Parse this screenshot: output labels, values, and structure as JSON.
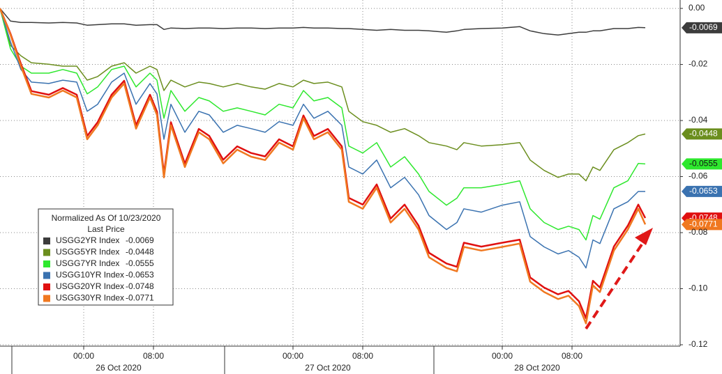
{
  "chart_data": {
    "type": "line",
    "legend_title": "Normalized As Of 10/23/2020",
    "legend_subtitle": "Last Price",
    "days": [
      "26 Oct 2020",
      "27 Oct 2020",
      "28 Oct 2020"
    ],
    "xlim": [
      -9.6,
      68.4
    ],
    "xticks": [
      {
        "value": 0,
        "label": "00:00"
      },
      {
        "value": 8,
        "label": "08:00"
      },
      {
        "value": 24,
        "label": "00:00"
      },
      {
        "value": 32,
        "label": "08:00"
      },
      {
        "value": 48,
        "label": "00:00"
      },
      {
        "value": 56,
        "label": "08:00"
      }
    ],
    "ylim": [
      -0.1205,
      0.003
    ],
    "yticks": [
      {
        "value": 0,
        "label": "0.00"
      },
      {
        "value": -0.02,
        "label": "-0.02"
      },
      {
        "value": -0.04,
        "label": "-0.04"
      },
      {
        "value": -0.06,
        "label": "-0.06"
      },
      {
        "value": -0.08,
        "label": "-0.08"
      },
      {
        "value": -0.1,
        "label": "-0.10"
      },
      {
        "value": -0.12,
        "label": "-0.12"
      }
    ],
    "grid": true,
    "x": [
      -9.6,
      -8.4,
      -7.2,
      -6,
      -4,
      -2.4,
      -0.8,
      0.4,
      1.6,
      3.2,
      4.64,
      6,
      7.6,
      8.4,
      9.2,
      10,
      11.6,
      13.2,
      14.4,
      16,
      17.6,
      19.2,
      20.8,
      22.4,
      24,
      25.2,
      26.4,
      28,
      29.6,
      30.4,
      32,
      33.6,
      35.2,
      36.8,
      38.4,
      39.6,
      41.6,
      42.8,
      43.6,
      45.6,
      48,
      50,
      51.2,
      52.8,
      54.4,
      55.6,
      56.8,
      57.6,
      58.4,
      59.2,
      60.8,
      62.4,
      63.6,
      64.4
    ],
    "series": [
      {
        "name": "USGG2YR Index",
        "color": "#3c3c3c",
        "last": -0.0069,
        "values": [
          0,
          -0.0045,
          -0.005,
          -0.005,
          -0.0052,
          -0.005,
          -0.0052,
          -0.006,
          -0.0058,
          -0.0055,
          -0.0055,
          -0.006,
          -0.0058,
          -0.0058,
          -0.0075,
          -0.007,
          -0.0072,
          -0.007,
          -0.007,
          -0.0072,
          -0.007,
          -0.007,
          -0.0072,
          -0.007,
          -0.007,
          -0.0068,
          -0.007,
          -0.007,
          -0.0072,
          -0.0072,
          -0.0075,
          -0.0078,
          -0.0075,
          -0.0078,
          -0.0078,
          -0.008,
          -0.0085,
          -0.008,
          -0.0075,
          -0.0072,
          -0.007,
          -0.0065,
          -0.008,
          -0.009,
          -0.0095,
          -0.009,
          -0.0085,
          -0.0085,
          -0.008,
          -0.008,
          -0.0072,
          -0.0072,
          -0.0068,
          -0.0069
        ]
      },
      {
        "name": "USGG5YR Index",
        "color": "#6b8e1e",
        "last": -0.0448,
        "values": [
          0,
          -0.0132,
          -0.0169,
          -0.0194,
          -0.0199,
          -0.0206,
          -0.0206,
          -0.0256,
          -0.0243,
          -0.0206,
          -0.0194,
          -0.0231,
          -0.0206,
          -0.0218,
          -0.0293,
          -0.0256,
          -0.028,
          -0.0263,
          -0.0268,
          -0.028,
          -0.0268,
          -0.028,
          -0.0288,
          -0.0268,
          -0.028,
          -0.0256,
          -0.0268,
          -0.0263,
          -0.028,
          -0.0367,
          -0.0404,
          -0.0417,
          -0.0442,
          -0.0429,
          -0.0454,
          -0.0479,
          -0.0491,
          -0.0504,
          -0.0479,
          -0.0491,
          -0.0486,
          -0.0479,
          -0.0541,
          -0.0578,
          -0.0603,
          -0.0591,
          -0.0591,
          -0.0615,
          -0.0566,
          -0.0578,
          -0.0504,
          -0.0479,
          -0.0454,
          -0.0448
        ]
      },
      {
        "name": "USGG7YR Index",
        "color": "#2ee82e",
        "last": -0.0555,
        "values": [
          0,
          -0.0144,
          -0.0206,
          -0.0231,
          -0.0231,
          -0.0218,
          -0.0231,
          -0.0305,
          -0.028,
          -0.0218,
          -0.0206,
          -0.028,
          -0.0231,
          -0.0256,
          -0.0392,
          -0.0293,
          -0.0367,
          -0.0318,
          -0.033,
          -0.0367,
          -0.0355,
          -0.0367,
          -0.038,
          -0.0342,
          -0.0355,
          -0.0293,
          -0.033,
          -0.0318,
          -0.0355,
          -0.0491,
          -0.0516,
          -0.0479,
          -0.0566,
          -0.0529,
          -0.0591,
          -0.0653,
          -0.0702,
          -0.0677,
          -0.064,
          -0.064,
          -0.0628,
          -0.0615,
          -0.0715,
          -0.0764,
          -0.0789,
          -0.0777,
          -0.0789,
          -0.0826,
          -0.0739,
          -0.0752,
          -0.064,
          -0.0615,
          -0.0553,
          -0.0555
        ]
      },
      {
        "name": "USGG10YR Index",
        "color": "#3a72b0",
        "last": -0.0653,
        "values": [
          0,
          -0.0119,
          -0.0218,
          -0.0263,
          -0.0268,
          -0.0256,
          -0.0263,
          -0.0367,
          -0.0342,
          -0.0263,
          -0.0231,
          -0.0342,
          -0.0268,
          -0.0305,
          -0.0467,
          -0.0342,
          -0.0442,
          -0.0367,
          -0.038,
          -0.0442,
          -0.0417,
          -0.0429,
          -0.0442,
          -0.0404,
          -0.0417,
          -0.0342,
          -0.0392,
          -0.0367,
          -0.0417,
          -0.0566,
          -0.0591,
          -0.0541,
          -0.064,
          -0.0603,
          -0.0665,
          -0.0739,
          -0.0789,
          -0.0764,
          -0.0715,
          -0.0727,
          -0.0702,
          -0.069,
          -0.0814,
          -0.0851,
          -0.0876,
          -0.0864,
          -0.0888,
          -0.0926,
          -0.0826,
          -0.0839,
          -0.0715,
          -0.069,
          -0.0653,
          -0.0653
        ]
      },
      {
        "name": "USGG20YR Index",
        "color": "#e01010",
        "last": -0.0748,
        "values": [
          0,
          -0.009,
          -0.0198,
          -0.0295,
          -0.0308,
          -0.0284,
          -0.0308,
          -0.0455,
          -0.0406,
          -0.0308,
          -0.0258,
          -0.0417,
          -0.0308,
          -0.0368,
          -0.059,
          -0.0406,
          -0.0554,
          -0.043,
          -0.0455,
          -0.054,
          -0.0492,
          -0.0516,
          -0.0528,
          -0.0467,
          -0.0492,
          -0.0382,
          -0.0455,
          -0.043,
          -0.0492,
          -0.0676,
          -0.07,
          -0.0628,
          -0.075,
          -0.07,
          -0.0775,
          -0.0872,
          -0.091,
          -0.0922,
          -0.0836,
          -0.085,
          -0.0836,
          -0.0825,
          -0.096,
          -0.0996,
          -0.102,
          -0.1008,
          -0.1045,
          -0.1105,
          -0.0972,
          -0.0996,
          -0.085,
          -0.0775,
          -0.07,
          -0.0748
        ]
      },
      {
        "name": "USGG30YR Index",
        "color": "#f07820",
        "last": -0.0771,
        "values": [
          0,
          -0.0094,
          -0.0206,
          -0.0305,
          -0.0318,
          -0.0293,
          -0.0318,
          -0.0467,
          -0.0417,
          -0.0318,
          -0.0268,
          -0.0429,
          -0.0318,
          -0.038,
          -0.0603,
          -0.0417,
          -0.0566,
          -0.0442,
          -0.0467,
          -0.0553,
          -0.0504,
          -0.0529,
          -0.0541,
          -0.0479,
          -0.0504,
          -0.0392,
          -0.0467,
          -0.0442,
          -0.0504,
          -0.069,
          -0.0715,
          -0.064,
          -0.0764,
          -0.0715,
          -0.0789,
          -0.0888,
          -0.0926,
          -0.0938,
          -0.0851,
          -0.0864,
          -0.0851,
          -0.0839,
          -0.0975,
          -0.1012,
          -0.1037,
          -0.1025,
          -0.1062,
          -0.1124,
          -0.0988,
          -0.1012,
          -0.0864,
          -0.0789,
          -0.0715,
          -0.0771
        ]
      }
    ]
  }
}
